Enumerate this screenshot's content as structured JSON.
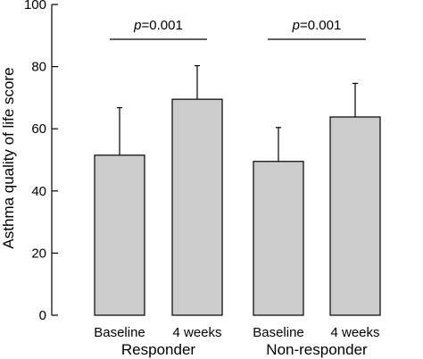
{
  "chart_data": {
    "type": "bar",
    "title": "",
    "xlabel": "",
    "ylabel": "Asthma quality of life score",
    "ylim": [
      0,
      100
    ],
    "yticks": [
      0,
      20,
      40,
      60,
      80,
      100
    ],
    "grid": false,
    "bar_color": "#cccccc",
    "groups": [
      {
        "label": "Responder",
        "annotation": {
          "p_symbol": "p",
          "p_text": "=0.001"
        },
        "bars": [
          {
            "category": "Baseline",
            "value": 51.5,
            "error": 15.3
          },
          {
            "category": "4 weeks",
            "value": 69.5,
            "error": 10.8
          }
        ]
      },
      {
        "label": "Non-responder",
        "annotation": {
          "p_symbol": "p",
          "p_text": "=0.001"
        },
        "bars": [
          {
            "category": "Baseline",
            "value": 49.5,
            "error": 10.9
          },
          {
            "category": "4 weeks",
            "value": 63.8,
            "error": 10.8
          }
        ]
      }
    ]
  }
}
